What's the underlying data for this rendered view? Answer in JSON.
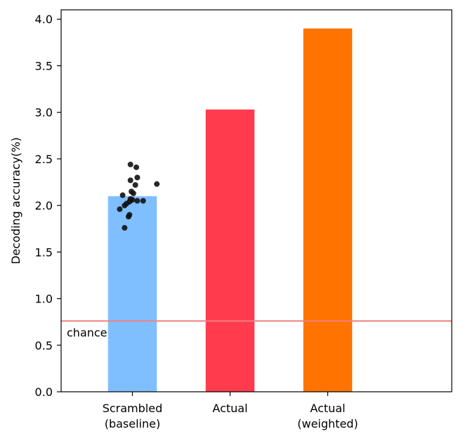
{
  "chart_data": {
    "type": "bar",
    "categories": [
      "Scrambled\n(baseline)",
      "Actual",
      "Actual\n(weighted)"
    ],
    "values": [
      2.1,
      3.03,
      3.9
    ],
    "bar_colors": [
      "#80bfff",
      "#ff3b4d",
      "#ff7300"
    ],
    "xlabel": "",
    "ylabel": "Decoding accuracy(%)",
    "ylim": [
      0,
      4.1
    ],
    "yticks": [
      0.0,
      0.5,
      1.0,
      1.5,
      2.0,
      2.5,
      3.0,
      3.5,
      4.0
    ],
    "ytick_labels": [
      "0.0",
      "0.5",
      "1.0",
      "1.5",
      "2.0",
      "2.5",
      "3.0",
      "3.5",
      "4.0"
    ],
    "chance_line": {
      "value": 0.76,
      "label": "chance",
      "color": "#f08080"
    },
    "scatter_points": {
      "category_index": 0,
      "color": "#111111",
      "points": [
        {
          "dx": -0.02,
          "y": 2.44
        },
        {
          "dx": 0.04,
          "y": 2.41
        },
        {
          "dx": 0.05,
          "y": 2.3
        },
        {
          "dx": -0.02,
          "y": 2.27
        },
        {
          "dx": 0.25,
          "y": 2.23
        },
        {
          "dx": 0.03,
          "y": 2.22
        },
        {
          "dx": -0.01,
          "y": 2.15
        },
        {
          "dx": 0.01,
          "y": 2.13
        },
        {
          "dx": -0.1,
          "y": 2.11
        },
        {
          "dx": -0.02,
          "y": 2.07
        },
        {
          "dx": 0.0,
          "y": 2.06
        },
        {
          "dx": 0.05,
          "y": 2.05
        },
        {
          "dx": 0.11,
          "y": 2.05
        },
        {
          "dx": -0.03,
          "y": 2.04
        },
        {
          "dx": -0.06,
          "y": 2.02
        },
        {
          "dx": -0.08,
          "y": 2.0
        },
        {
          "dx": -0.13,
          "y": 1.96
        },
        {
          "dx": -0.03,
          "y": 1.9
        },
        {
          "dx": -0.04,
          "y": 1.88
        },
        {
          "dx": -0.08,
          "y": 1.76
        }
      ]
    }
  }
}
